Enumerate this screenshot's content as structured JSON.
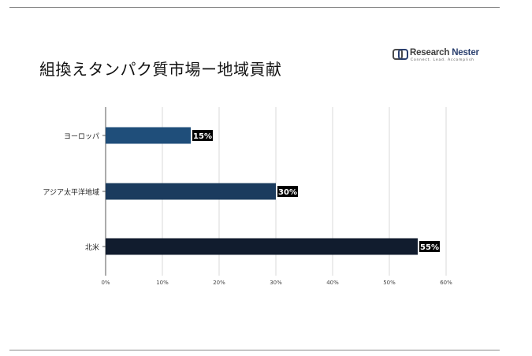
{
  "title": "組換えタンパク質市場ー地域貢献",
  "logo": {
    "name_part1": "Research",
    "name_part2": "Nester",
    "tagline": "Connect. Lead. Accomplish"
  },
  "colors": {
    "europe": "#1f4e7a",
    "asia_pacific": "#1b3b5e",
    "north_america": "#111c2e",
    "grid": "#d9d9d9",
    "axis": "#595959"
  },
  "chart_data": {
    "type": "bar",
    "orientation": "horizontal",
    "categories": [
      "ヨーロッパ",
      "アジア太平洋地域",
      "北米"
    ],
    "values": [
      15,
      30,
      55
    ],
    "data_labels": [
      "15%",
      "30%",
      "55%"
    ],
    "xlim": [
      0,
      60
    ],
    "xticks": [
      0,
      10,
      20,
      30,
      40,
      50,
      60
    ],
    "xtick_labels": [
      "0%",
      "10%",
      "20%",
      "30%",
      "40%",
      "50%",
      "60%"
    ],
    "grid": true
  }
}
